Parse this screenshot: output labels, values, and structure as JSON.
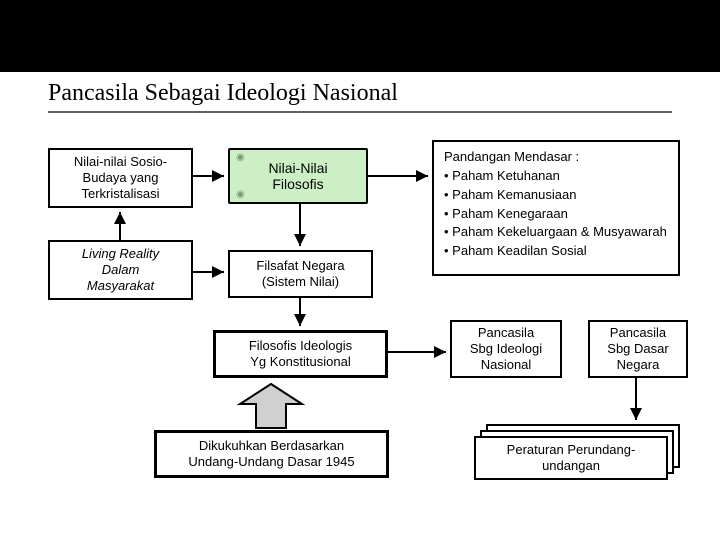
{
  "title": "Pancasila Sebagai Ideologi Nasional",
  "boxes": {
    "sosio": "Nilai-nilai Sosio-\nBudaya yang\nTerkristalisasi",
    "living": "Living Reality\nDalam\nMasyarakat",
    "nilainilai": "Nilai-Nilai\nFilosofis",
    "filsafat": "Filsafat Negara\n(Sistem Nilai)",
    "ideologis": "Filosofis Ideologis\nYg Konstitusional",
    "uud": "Dikukuhkan Berdasarkan\nUndang-Undang Dasar 1945",
    "pandangan_title": "Pandangan Mendasar  :",
    "pandangan_items": [
      "Paham Ketuhanan",
      "Paham Kemanusiaan",
      "Paham Kenegaraan",
      "Paham Kekeluargaan & Musyawarah",
      "Paham Keadilan Sosial"
    ],
    "sbg_ideologi": "Pancasila\nSbg Ideologi\nNasional",
    "sbg_dasar": "Pancasila\nSbg Dasar\nNegara",
    "peraturan": "Peraturan Perundang-\nundangan"
  },
  "style": {
    "living_italic": true,
    "colors": {
      "scroll_fill": "#ccefc6",
      "big_arrow_fill": "#d0d0d0",
      "big_arrow_stroke": "#000000",
      "line": "#000000",
      "topbar": "#000000"
    }
  }
}
